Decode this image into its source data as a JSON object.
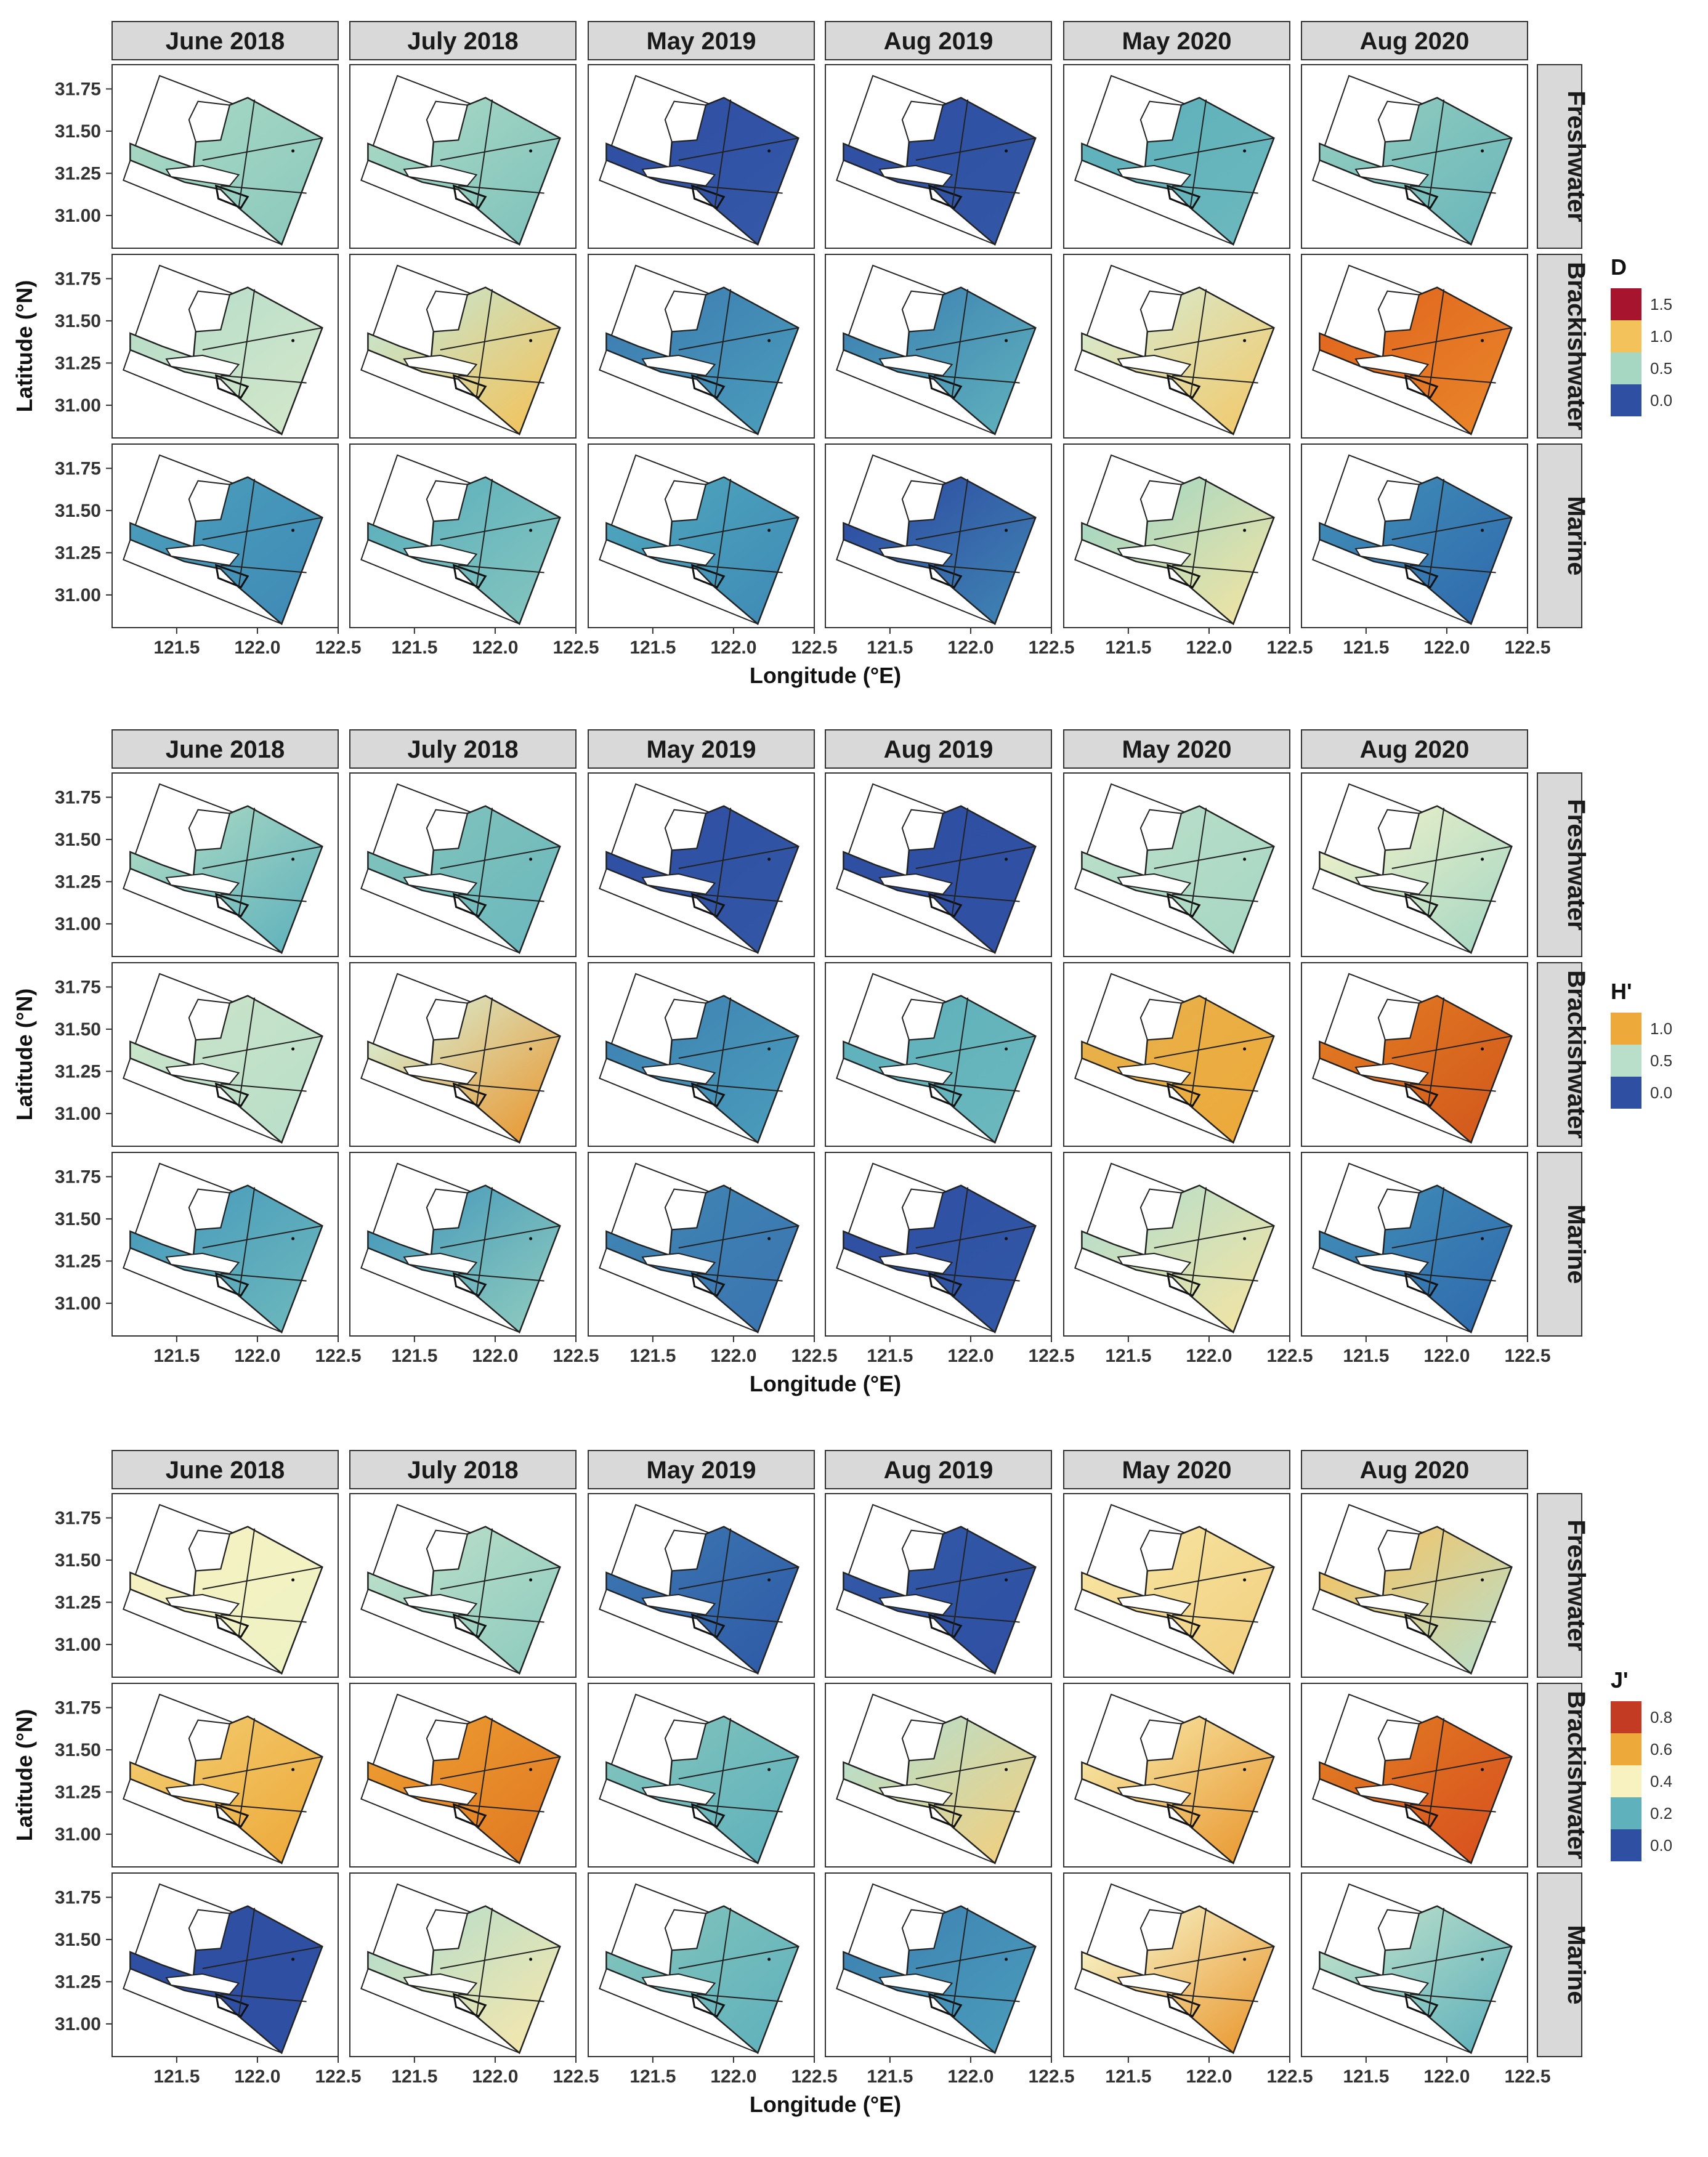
{
  "chart_data": [
    {
      "type": "heatmap",
      "index": "D",
      "legend_title": "D",
      "legend_ticks": [
        "1.5",
        "1.0",
        "0.5",
        "0.0"
      ],
      "legend_colors": [
        "#a7142e",
        "#f3c25a",
        "#a6d7c3",
        "#2f4fa3"
      ],
      "columns": [
        "June 2018",
        "July 2018",
        "May 2019",
        "Aug 2019",
        "May 2020",
        "Aug 2020"
      ],
      "rows": [
        "Freshwater",
        "Brackishwater",
        "Marine"
      ],
      "xlabel": "Longitude (°E)",
      "ylabel": "Latitude (°N)",
      "xticks": [
        "121.5",
        "122.0",
        "122.5"
      ],
      "yticks": [
        "31.75",
        "31.50",
        "31.25",
        "31.00"
      ],
      "xlim": [
        121.1,
        122.5
      ],
      "ylim": [
        30.85,
        31.85
      ],
      "cells": [
        [
          [
            "#a6d7c3",
            "#8cc9bd"
          ],
          [
            "#a6d7c3",
            "#7fc2bc"
          ],
          [
            "#2f4fa3",
            "#3558a8"
          ],
          [
            "#2f4fa3",
            "#3257a5"
          ],
          [
            "#5fb1bc",
            "#6cb8bd"
          ],
          [
            "#8ecbbe",
            "#6ab6bb"
          ]
        ],
        [
          [
            "#b9dec9",
            "#d3e7cb"
          ],
          [
            "#c9e4c9",
            "#f3c25a"
          ],
          [
            "#3e7fb2",
            "#4a9cbb"
          ],
          [
            "#3f84b3",
            "#5fb1bc"
          ],
          [
            "#d8e9cb",
            "#f2c96b"
          ],
          [
            "#e1681f",
            "#e9852a"
          ]
        ],
        [
          [
            "#4a9cbb",
            "#3f8ab6"
          ],
          [
            "#5fb1bc",
            "#84c5bf"
          ],
          [
            "#4da4bc",
            "#3f8ab6"
          ],
          [
            "#2f4fa3",
            "#3f84b3"
          ],
          [
            "#a6d7c3",
            "#f1e4a3"
          ],
          [
            "#3f8ab6",
            "#2f6aad"
          ]
        ]
      ]
    },
    {
      "type": "heatmap",
      "index": "H'",
      "legend_title": "H'",
      "legend_ticks": [
        "1.0",
        "0.5",
        "0.0"
      ],
      "legend_colors": [
        "#eda93a",
        "#b9dec9",
        "#2f4fa3"
      ],
      "columns": [
        "June 2018",
        "July 2018",
        "May 2019",
        "Aug 2019",
        "May 2020",
        "Aug 2020"
      ],
      "rows": [
        "Freshwater",
        "Brackishwater",
        "Marine"
      ],
      "xlabel": "Longitude (°E)",
      "ylabel": "Latitude (°N)",
      "xticks": [
        "121.5",
        "122.0",
        "122.5"
      ],
      "yticks": [
        "31.75",
        "31.50",
        "31.25",
        "31.00"
      ],
      "xlim": [
        121.1,
        122.5
      ],
      "ylim": [
        30.85,
        31.85
      ],
      "cells": [
        [
          [
            "#a6d7c3",
            "#5fb1bc"
          ],
          [
            "#7fc2bc",
            "#6cb8bd"
          ],
          [
            "#2f4fa3",
            "#3257a5"
          ],
          [
            "#2f4fa3",
            "#3050a3"
          ],
          [
            "#b9dec9",
            "#a6d7c3"
          ],
          [
            "#e9efc9",
            "#a6d7c3"
          ]
        ],
        [
          [
            "#c9e4c9",
            "#b9dec9"
          ],
          [
            "#d8e9cb",
            "#e9972f"
          ],
          [
            "#3f84b3",
            "#4a9cbb"
          ],
          [
            "#5fb1bc",
            "#6cb8bd"
          ],
          [
            "#e8b14a",
            "#eda93a"
          ],
          [
            "#e07822",
            "#d2581c"
          ]
        ],
        [
          [
            "#4a9cbb",
            "#6cb8bd"
          ],
          [
            "#4a9cbb",
            "#8ecbbe"
          ],
          [
            "#3f84b3",
            "#3a74b0"
          ],
          [
            "#2f4fa3",
            "#3258a6"
          ],
          [
            "#b9dec9",
            "#f3e4a3"
          ],
          [
            "#3f8ab6",
            "#2f6aad"
          ]
        ]
      ]
    },
    {
      "type": "heatmap",
      "index": "J'",
      "legend_title": "J'",
      "legend_ticks": [
        "0.8",
        "0.6",
        "0.4",
        "0.2",
        "0.0"
      ],
      "legend_colors": [
        "#c23b22",
        "#eda93a",
        "#f7f2c0",
        "#5fb1bc",
        "#2f4fa3"
      ],
      "columns": [
        "June 2018",
        "July 2018",
        "May 2019",
        "Aug 2019",
        "May 2020",
        "Aug 2020"
      ],
      "rows": [
        "Freshwater",
        "Brackishwater",
        "Marine"
      ],
      "xlabel": "Longitude (°E)",
      "ylabel": "Latitude (°N)",
      "xticks": [
        "121.5",
        "122.0",
        "122.5"
      ],
      "yticks": [
        "31.75",
        "31.50",
        "31.25",
        "31.00"
      ],
      "xlim": [
        121.1,
        122.5
      ],
      "ylim": [
        30.85,
        31.85
      ],
      "cells": [
        [
          [
            "#f6f1c1",
            "#eef3c5"
          ],
          [
            "#b9dec9",
            "#8ecbbe"
          ],
          [
            "#3a74b0",
            "#2f5aa6"
          ],
          [
            "#3258a6",
            "#2f4fa3"
          ],
          [
            "#f6e3a0",
            "#f2cf7e"
          ],
          [
            "#f1c56a",
            "#b9dec9"
          ]
        ],
        [
          [
            "#f2c96b",
            "#eda93a"
          ],
          [
            "#ec9a30",
            "#e07822"
          ],
          [
            "#7fc2bc",
            "#5fb1bc"
          ],
          [
            "#b9dec9",
            "#f2cf7e"
          ],
          [
            "#f6e3a0",
            "#e9972f"
          ],
          [
            "#e07822",
            "#d8501e"
          ]
        ],
        [
          [
            "#2f4fa3",
            "#2f4fa3"
          ],
          [
            "#b9dec9",
            "#f6e7ad"
          ],
          [
            "#7fc2bc",
            "#5fb1bc"
          ],
          [
            "#3f84b3",
            "#4a9cbb"
          ],
          [
            "#f6efc0",
            "#e9972f"
          ],
          [
            "#b9dec9",
            "#5fb1bc"
          ]
        ]
      ]
    }
  ]
}
